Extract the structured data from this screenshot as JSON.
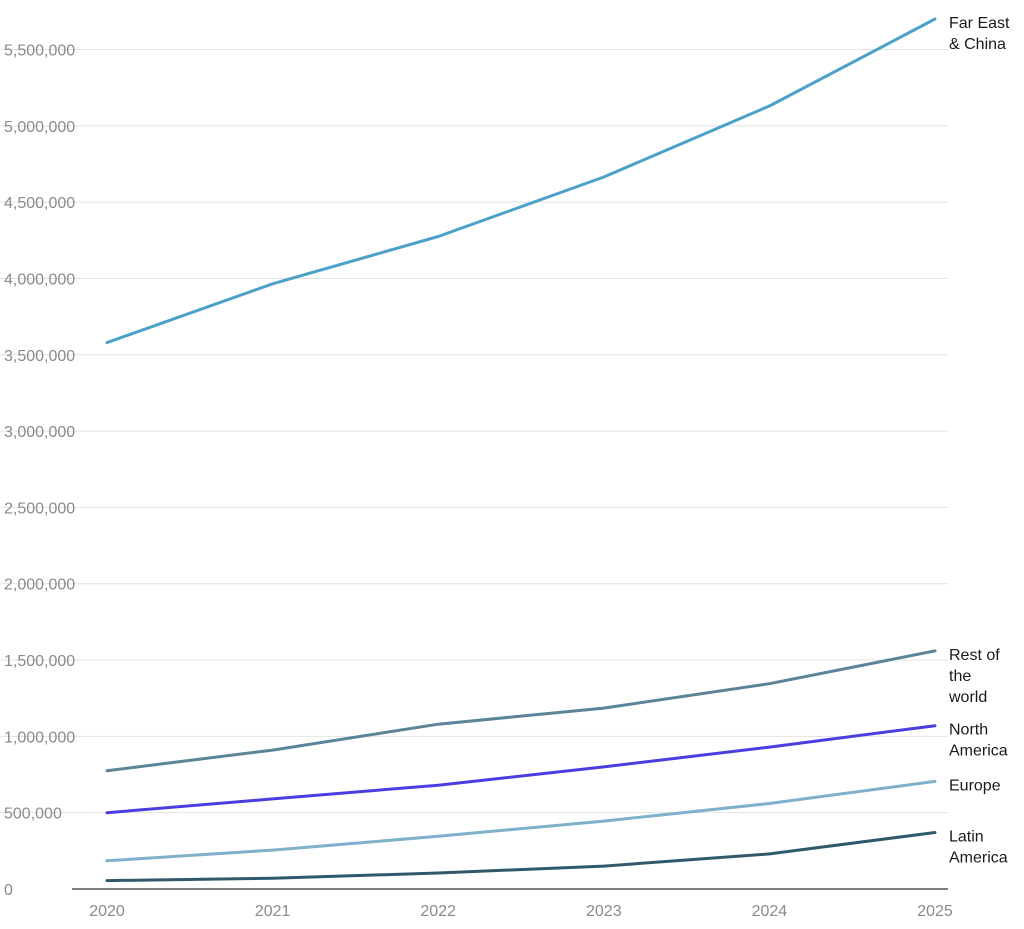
{
  "chart_data": {
    "type": "line",
    "title": "",
    "xlabel": "",
    "ylabel": "",
    "x": [
      "2020",
      "2021",
      "2022",
      "2023",
      "2024",
      "2025"
    ],
    "ylim": [
      0,
      5700000
    ],
    "yticks": [
      0,
      500000,
      1000000,
      1500000,
      2000000,
      2500000,
      3000000,
      3500000,
      4000000,
      4500000,
      5000000,
      5500000
    ],
    "ytick_labels": [
      "0",
      "500,000",
      "1,000,000",
      "1,500,000",
      "2,000,000",
      "2,500,000",
      "3,000,000",
      "3,500,000",
      "4,000,000",
      "4,500,000",
      "5,000,000",
      "5,500,000"
    ],
    "grid": true,
    "legend": "direct labels at line ends (right)",
    "series": [
      {
        "name": "Far East & China",
        "label_lines": [
          "Far East",
          "& China"
        ],
        "color": "#4ba1c8",
        "values": [
          3580000,
          3965000,
          4275000,
          4665000,
          5130000,
          5700000
        ]
      },
      {
        "name": "Rest of the world",
        "label_lines": [
          "Rest of",
          "the",
          "world"
        ],
        "color": "#5b8497",
        "values": [
          775000,
          910000,
          1080000,
          1185000,
          1345000,
          1560000
        ]
      },
      {
        "name": "North America",
        "label_lines": [
          "North",
          "America"
        ],
        "color": "#4b3ee0",
        "values": [
          500000,
          590000,
          680000,
          800000,
          930000,
          1070000
        ]
      },
      {
        "name": "Europe",
        "label_lines": [
          "Europe"
        ],
        "color": "#7fb0cc",
        "values": [
          185000,
          255000,
          345000,
          445000,
          560000,
          705000
        ]
      },
      {
        "name": "Latin America",
        "label_lines": [
          "Latin",
          "America"
        ],
        "color": "#305a6c",
        "values": [
          55000,
          70000,
          105000,
          150000,
          230000,
          370000
        ]
      }
    ]
  }
}
